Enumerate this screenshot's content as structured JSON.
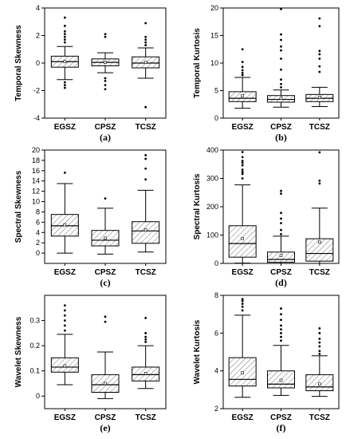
{
  "chart_data": [
    {
      "type": "box",
      "panel_label": "(a)",
      "ylabel": "Temporal Skewness",
      "categories": [
        "EGSZ",
        "CPSZ",
        "TCSZ"
      ],
      "ylim": [
        -4,
        4
      ],
      "yticks": [
        -4,
        -2,
        0,
        2,
        4
      ],
      "boxes": [
        {
          "whisker_low": -1.2,
          "q1": -0.3,
          "median": 0.1,
          "q3": 0.5,
          "whisker_high": 1.2,
          "mean": 0.1,
          "outliers": [
            1.5,
            1.7,
            1.9,
            2.1,
            2.3,
            2.7,
            3.3,
            -1.4,
            -1.6,
            -1.8
          ]
        },
        {
          "whisker_low": -0.7,
          "q1": -0.2,
          "median": 0.05,
          "q3": 0.3,
          "whisker_high": 0.75,
          "mean": 0.05,
          "outliers": [
            1.9,
            2.1,
            -1.1,
            -1.3,
            -1.6,
            -1.9
          ]
        },
        {
          "whisker_low": -1.1,
          "q1": -0.35,
          "median": 0.0,
          "q3": 0.45,
          "whisker_high": 1.1,
          "mean": 0.05,
          "outliers": [
            1.3,
            1.5,
            1.7,
            1.9,
            2.9,
            -3.2
          ]
        }
      ]
    },
    {
      "type": "box",
      "panel_label": "(b)",
      "ylabel": "Temporal Kurtosis",
      "categories": [
        "EGSZ",
        "CPSZ",
        "TCSZ"
      ],
      "ylim": [
        0,
        20
      ],
      "yticks": [
        0,
        5,
        10,
        15,
        20
      ],
      "boxes": [
        {
          "whisker_low": 1.8,
          "q1": 3.0,
          "median": 3.6,
          "q3": 4.8,
          "whisker_high": 7.4,
          "mean": 4.1,
          "outliers": [
            7.8,
            8.2,
            8.7,
            9.3,
            10.2,
            12.5
          ]
        },
        {
          "whisker_low": 2.0,
          "q1": 2.9,
          "median": 3.4,
          "q3": 4.1,
          "whisker_high": 5.1,
          "mean": 3.6,
          "outliers": [
            5.6,
            6.2,
            7.0,
            8.8,
            10.8,
            12.3,
            13.0,
            14.2,
            15.2,
            19.8
          ]
        },
        {
          "whisker_low": 2.1,
          "q1": 3.0,
          "median": 3.6,
          "q3": 4.3,
          "whisker_high": 5.6,
          "mean": 3.8,
          "outliers": [
            8.4,
            9.4,
            10.8,
            11.6,
            12.2,
            16.7,
            18.1
          ]
        }
      ]
    },
    {
      "type": "box",
      "panel_label": "(c)",
      "ylabel": "Spectral Skewness",
      "categories": [
        "EGSZ",
        "CPSZ",
        "TCSZ"
      ],
      "ylim": [
        -2,
        20
      ],
      "yticks": [
        0,
        2,
        4,
        6,
        8,
        10,
        12,
        14,
        16,
        18,
        20
      ],
      "boxes": [
        {
          "whisker_low": 0.0,
          "q1": 3.3,
          "median": 5.3,
          "q3": 7.5,
          "whisker_high": 13.5,
          "mean": 5.5,
          "outliers": [
            15.6
          ]
        },
        {
          "whisker_low": -0.2,
          "q1": 1.4,
          "median": 2.5,
          "q3": 4.4,
          "whisker_high": 8.7,
          "mean": 2.9,
          "outliers": [
            10.6
          ]
        },
        {
          "whisker_low": 0.2,
          "q1": 1.9,
          "median": 4.3,
          "q3": 6.1,
          "whisker_high": 12.2,
          "mean": 4.5,
          "outliers": [
            14.3,
            16.4,
            18.3,
            19.0
          ]
        }
      ]
    },
    {
      "type": "box",
      "panel_label": "(d)",
      "ylabel": "Spectral Kurtosis",
      "categories": [
        "EGSZ",
        "CPSZ",
        "TCSZ"
      ],
      "ylim": [
        0,
        400
      ],
      "yticks": [
        0,
        100,
        200,
        300,
        400
      ],
      "boxes": [
        {
          "whisker_low": 1,
          "q1": 22,
          "median": 70,
          "q3": 133,
          "whisker_high": 277,
          "mean": 88,
          "outliers": [
            300,
            316,
            323,
            331,
            346,
            355,
            362,
            375,
            393
          ]
        },
        {
          "whisker_low": 0,
          "q1": 4,
          "median": 14,
          "q3": 40,
          "whisker_high": 96,
          "mean": 28,
          "outliers": [
            103,
            118,
            142,
            158,
            178,
            246,
            256
          ]
        },
        {
          "whisker_low": 0,
          "q1": 8,
          "median": 35,
          "q3": 87,
          "whisker_high": 195,
          "mean": 75,
          "outliers": [
            282,
            292,
            392
          ]
        }
      ]
    },
    {
      "type": "box",
      "panel_label": "(e)",
      "ylabel": "Wavelet Skewness",
      "categories": [
        "EGSZ",
        "CPSZ",
        "TCSZ"
      ],
      "ylim": [
        -0.05,
        0.4
      ],
      "yticks": [
        0.0,
        0.1,
        0.2,
        0.3
      ],
      "boxes": [
        {
          "whisker_low": 0.045,
          "q1": 0.095,
          "median": 0.115,
          "q3": 0.152,
          "whisker_high": 0.245,
          "mean": 0.12,
          "outliers": [
            0.26,
            0.28,
            0.3,
            0.32,
            0.34,
            0.36
          ]
        },
        {
          "whisker_low": -0.01,
          "q1": 0.015,
          "median": 0.045,
          "q3": 0.085,
          "whisker_high": 0.175,
          "mean": 0.05,
          "outliers": [
            0.295,
            0.315
          ]
        },
        {
          "whisker_low": 0.03,
          "q1": 0.06,
          "median": 0.085,
          "q3": 0.115,
          "whisker_high": 0.2,
          "mean": 0.09,
          "outliers": [
            0.215,
            0.225,
            0.235,
            0.25,
            0.31
          ]
        }
      ]
    },
    {
      "type": "box",
      "panel_label": "(f)",
      "ylabel": "Wavelet Kurtosis",
      "categories": [
        "EGSZ",
        "CPSZ",
        "TCSZ"
      ],
      "ylim": [
        2,
        8
      ],
      "yticks": [
        2,
        4,
        6,
        8
      ],
      "boxes": [
        {
          "whisker_low": 2.6,
          "q1": 3.2,
          "median": 3.55,
          "q3": 4.7,
          "whisker_high": 6.95,
          "mean": 3.9,
          "outliers": [
            7.2,
            7.4,
            7.55,
            7.7,
            7.8
          ]
        },
        {
          "whisker_low": 2.7,
          "q1": 3.1,
          "median": 3.3,
          "q3": 4.0,
          "whisker_high": 5.35,
          "mean": 3.5,
          "outliers": [
            5.6,
            5.8,
            6.0,
            6.2,
            6.4,
            6.7,
            7.0,
            7.3
          ]
        },
        {
          "whisker_low": 2.65,
          "q1": 2.95,
          "median": 3.15,
          "q3": 3.8,
          "whisker_high": 4.8,
          "mean": 3.3,
          "outliers": [
            4.9,
            5.05,
            5.3,
            5.5,
            5.7,
            6.0,
            6.25
          ]
        }
      ]
    }
  ]
}
